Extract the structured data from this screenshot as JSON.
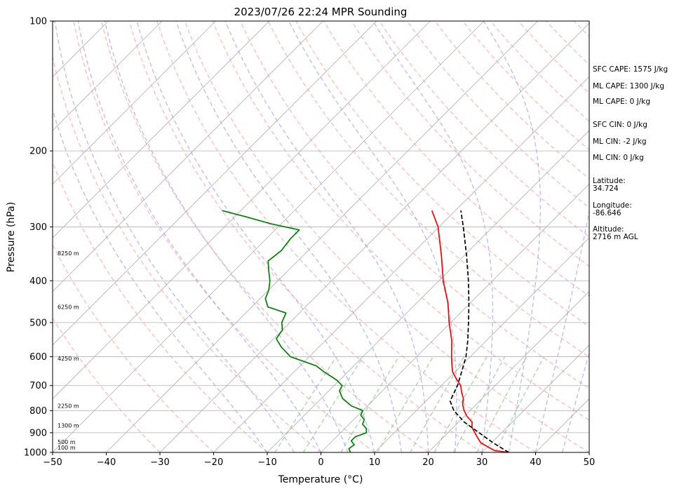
{
  "chart_data": {
    "type": "line",
    "subtype": "skew-t log-p sounding",
    "title": "2023/07/26 22:24 MPR Sounding",
    "xlabel": "Temperature (°C)",
    "ylabel": "Pressure (hPa)",
    "xlim": [
      -50,
      50
    ],
    "ylim": [
      1000,
      100
    ],
    "y_scale": "log",
    "x_ticks": [
      "−50",
      "−40",
      "−30",
      "−20",
      "−10",
      "0",
      "10",
      "20",
      "30",
      "40",
      "50"
    ],
    "y_ticks": [
      "100",
      "200",
      "300",
      "400",
      "500",
      "600",
      "700",
      "800",
      "900",
      "1000"
    ],
    "grid": true,
    "skew_deg": 45,
    "series": [
      {
        "role": "temperature",
        "color": "#ff0000",
        "style": "solid",
        "points": [
          [
            1000,
            35.0
          ],
          [
            990,
            32.0
          ],
          [
            975,
            30.5
          ],
          [
            950,
            28.0
          ],
          [
            925,
            26.5
          ],
          [
            900,
            25.0
          ],
          [
            875,
            23.5
          ],
          [
            850,
            22.5
          ],
          [
            825,
            20.5
          ],
          [
            800,
            18.9
          ],
          [
            775,
            17.5
          ],
          [
            750,
            16.5
          ],
          [
            725,
            15.0
          ],
          [
            700,
            13.6
          ],
          [
            675,
            11.5
          ],
          [
            650,
            9.5
          ],
          [
            625,
            8.0
          ],
          [
            600,
            6.5
          ],
          [
            550,
            3.5
          ],
          [
            500,
            -0.3
          ],
          [
            450,
            -4.2
          ],
          [
            400,
            -9.2
          ],
          [
            350,
            -14.2
          ],
          [
            300,
            -20.2
          ],
          [
            275,
            -24.4
          ]
        ]
      },
      {
        "role": "dewpoint",
        "color": "#008000",
        "style": "solid",
        "points": [
          [
            1000,
            5.5
          ],
          [
            980,
            4.5
          ],
          [
            960,
            4.8
          ],
          [
            940,
            3.5
          ],
          [
            920,
            3.5
          ],
          [
            900,
            4.8
          ],
          [
            880,
            4.0
          ],
          [
            860,
            2.5
          ],
          [
            840,
            2.0
          ],
          [
            820,
            0.5
          ],
          [
            800,
            0.0
          ],
          [
            780,
            -3.0
          ],
          [
            750,
            -6.0
          ],
          [
            720,
            -8.0
          ],
          [
            700,
            -8.5
          ],
          [
            680,
            -10.5
          ],
          [
            650,
            -14.5
          ],
          [
            630,
            -17.0
          ],
          [
            600,
            -23.5
          ],
          [
            570,
            -27.0
          ],
          [
            545,
            -29.5
          ],
          [
            520,
            -30.0
          ],
          [
            500,
            -31.5
          ],
          [
            475,
            -32.5
          ],
          [
            460,
            -37.0
          ],
          [
            440,
            -39.0
          ],
          [
            420,
            -40.0
          ],
          [
            400,
            -41.5
          ],
          [
            380,
            -43.5
          ],
          [
            360,
            -45.5
          ],
          [
            340,
            -45.0
          ],
          [
            320,
            -45.5
          ],
          [
            305,
            -45.5
          ],
          [
            295,
            -52.0
          ],
          [
            285,
            -57.5
          ],
          [
            275,
            -63.5
          ]
        ]
      },
      {
        "role": "parcel profile",
        "color": "#000000",
        "style": "dashed",
        "points": [
          [
            1000,
            35.0
          ],
          [
            950,
            30.3
          ],
          [
            900,
            25.8
          ],
          [
            850,
            21.0
          ],
          [
            800,
            17.0
          ],
          [
            760,
            14.5
          ],
          [
            700,
            13.0
          ],
          [
            650,
            11.2
          ],
          [
            600,
            9.2
          ],
          [
            550,
            6.5
          ],
          [
            500,
            3.3
          ],
          [
            450,
            -0.3
          ],
          [
            400,
            -4.5
          ],
          [
            350,
            -9.5
          ],
          [
            300,
            -15.5
          ],
          [
            275,
            -19.0
          ]
        ]
      }
    ],
    "height_labels": [
      {
        "p": 975,
        "text": "100 m"
      },
      {
        "p": 945,
        "text": "500 m"
      },
      {
        "p": 865,
        "text": "1300 m"
      },
      {
        "p": 780,
        "text": "2250 m"
      },
      {
        "p": 605,
        "text": "4250 m"
      },
      {
        "p": 460,
        "text": "6250 m"
      },
      {
        "p": 345,
        "text": "8250 m"
      }
    ],
    "annotations": [
      "SFC CAPE: 1575 J/kg",
      "ML CAPE: 1300 J/kg",
      "ML CAPE: 0 J/kg",
      "SFC CIN: 0 J/kg",
      "ML CIN: -2 J/kg",
      "ML CIN: 0 J/kg",
      "Latitude:\n34.724",
      "Longitude:\n-86.646",
      "Altitude:\n2716 m AGL"
    ],
    "colors": {
      "isotherm": "#b0b0b0",
      "isobar": "#b0b0b0",
      "dry_adiabat": "#ff9999",
      "moist_adiabat": "#9999ee",
      "mixing_ratio": "#77bb77"
    }
  }
}
